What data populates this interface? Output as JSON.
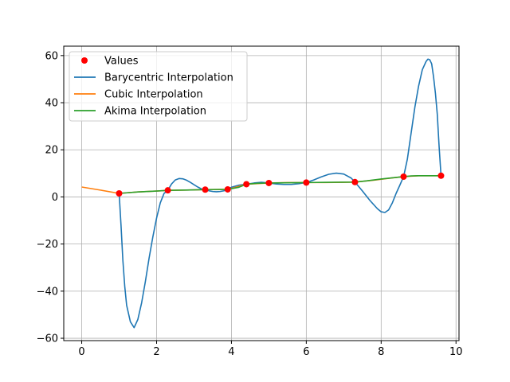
{
  "chart_data": {
    "type": "line",
    "title": "",
    "xlabel": "",
    "ylabel": "",
    "xlim": [
      -0.48,
      10.08
    ],
    "ylim": [
      -61,
      64
    ],
    "grid": true,
    "legend_position": "top-left",
    "xticks": [
      0,
      2,
      4,
      6,
      8,
      10
    ],
    "yticks": [
      -60,
      -40,
      -20,
      0,
      20,
      40,
      60
    ],
    "xtick_labels": [
      "0",
      "2",
      "4",
      "6",
      "8",
      "10"
    ],
    "ytick_labels": [
      "−60",
      "−40",
      "−20",
      "0",
      "20",
      "40",
      "60"
    ],
    "legend": [
      {
        "label": "Values",
        "kind": "marker",
        "color": "#ff0000"
      },
      {
        "label": "Barycentric Interpolation",
        "kind": "line",
        "color": "#1f77b4"
      },
      {
        "label": "Cubic Interpolation",
        "kind": "line",
        "color": "#ff7f0e"
      },
      {
        "label": "Akima Interpolation",
        "kind": "line",
        "color": "#2ca02c"
      }
    ],
    "points": {
      "name": "Values",
      "color": "#ff0000",
      "x": [
        1.0,
        2.3,
        3.3,
        3.9,
        4.4,
        5.0,
        6.0,
        7.3,
        8.6,
        9.6
      ],
      "y": [
        1.5,
        2.8,
        3.1,
        3.2,
        5.4,
        5.9,
        6.1,
        6.3,
        8.6,
        9.0
      ]
    },
    "series": [
      {
        "name": "Barycentric Interpolation",
        "color": "#1f77b4",
        "x": [
          1.0,
          1.05,
          1.1,
          1.15,
          1.2,
          1.3,
          1.4,
          1.5,
          1.6,
          1.7,
          1.8,
          1.9,
          2.0,
          2.1,
          2.2,
          2.3,
          2.4,
          2.5,
          2.6,
          2.7,
          2.8,
          2.9,
          3.0,
          3.1,
          3.2,
          3.3,
          3.4,
          3.5,
          3.6,
          3.7,
          3.8,
          3.9,
          4.0,
          4.2,
          4.4,
          4.6,
          4.8,
          5.0,
          5.2,
          5.4,
          5.6,
          5.8,
          6.0,
          6.2,
          6.4,
          6.6,
          6.8,
          7.0,
          7.2,
          7.3,
          7.5,
          7.7,
          7.9,
          8.0,
          8.1,
          8.2,
          8.3,
          8.4,
          8.5,
          8.6,
          8.7,
          8.8,
          8.9,
          9.0,
          9.1,
          9.2,
          9.25,
          9.3,
          9.35,
          9.4,
          9.45,
          9.5,
          9.55,
          9.6
        ],
        "y": [
          1.5,
          -12,
          -27,
          -38,
          -46,
          -53,
          -55.5,
          -52,
          -45,
          -36,
          -26,
          -17,
          -9,
          -2.5,
          1.5,
          2.8,
          5.5,
          7.2,
          7.8,
          7.7,
          7.1,
          6.2,
          5.2,
          4.2,
          3.4,
          3.1,
          2.6,
          2.3,
          2.2,
          2.3,
          2.6,
          3.2,
          4.1,
          5.0,
          5.4,
          5.9,
          6.2,
          5.9,
          5.5,
          5.3,
          5.3,
          5.6,
          6.1,
          7.2,
          8.5,
          9.6,
          10.1,
          9.7,
          8.0,
          6.3,
          2.5,
          -1.5,
          -5.0,
          -6.3,
          -6.6,
          -5.5,
          -2.5,
          1.5,
          5.0,
          8.6,
          16,
          27,
          38,
          47,
          54,
          57.5,
          58.5,
          58.2,
          56.5,
          51,
          44,
          35,
          21,
          9.0
        ]
      },
      {
        "name": "Cubic Interpolation",
        "color": "#ff7f0e",
        "x": [
          0.0,
          0.5,
          1.0,
          1.5,
          2.0,
          2.3,
          2.8,
          3.3,
          3.9,
          4.4,
          5.0,
          5.5,
          6.0,
          6.5,
          7.0,
          7.3,
          7.8,
          8.2,
          8.6,
          9.0,
          9.6
        ],
        "y": [
          4.2,
          2.9,
          1.5,
          2.1,
          2.5,
          2.8,
          2.9,
          3.1,
          3.2,
          5.4,
          5.9,
          6.1,
          6.1,
          6.1,
          6.2,
          6.3,
          7.1,
          7.9,
          8.6,
          9.0,
          9.0
        ]
      },
      {
        "name": "Akima Interpolation",
        "color": "#2ca02c",
        "x": [
          1.0,
          1.5,
          2.0,
          2.3,
          2.8,
          3.3,
          3.9,
          4.2,
          4.4,
          4.7,
          5.0,
          5.5,
          6.0,
          6.6,
          7.3,
          7.6,
          8.0,
          8.3,
          8.6,
          8.8,
          9.0,
          9.2,
          9.6
        ],
        "y": [
          1.5,
          2.1,
          2.5,
          2.8,
          2.9,
          3.1,
          3.2,
          4.1,
          5.4,
          5.8,
          5.9,
          6.0,
          6.1,
          6.2,
          6.3,
          6.8,
          7.6,
          8.1,
          8.6,
          8.9,
          9.0,
          9.0,
          9.0
        ]
      }
    ]
  }
}
